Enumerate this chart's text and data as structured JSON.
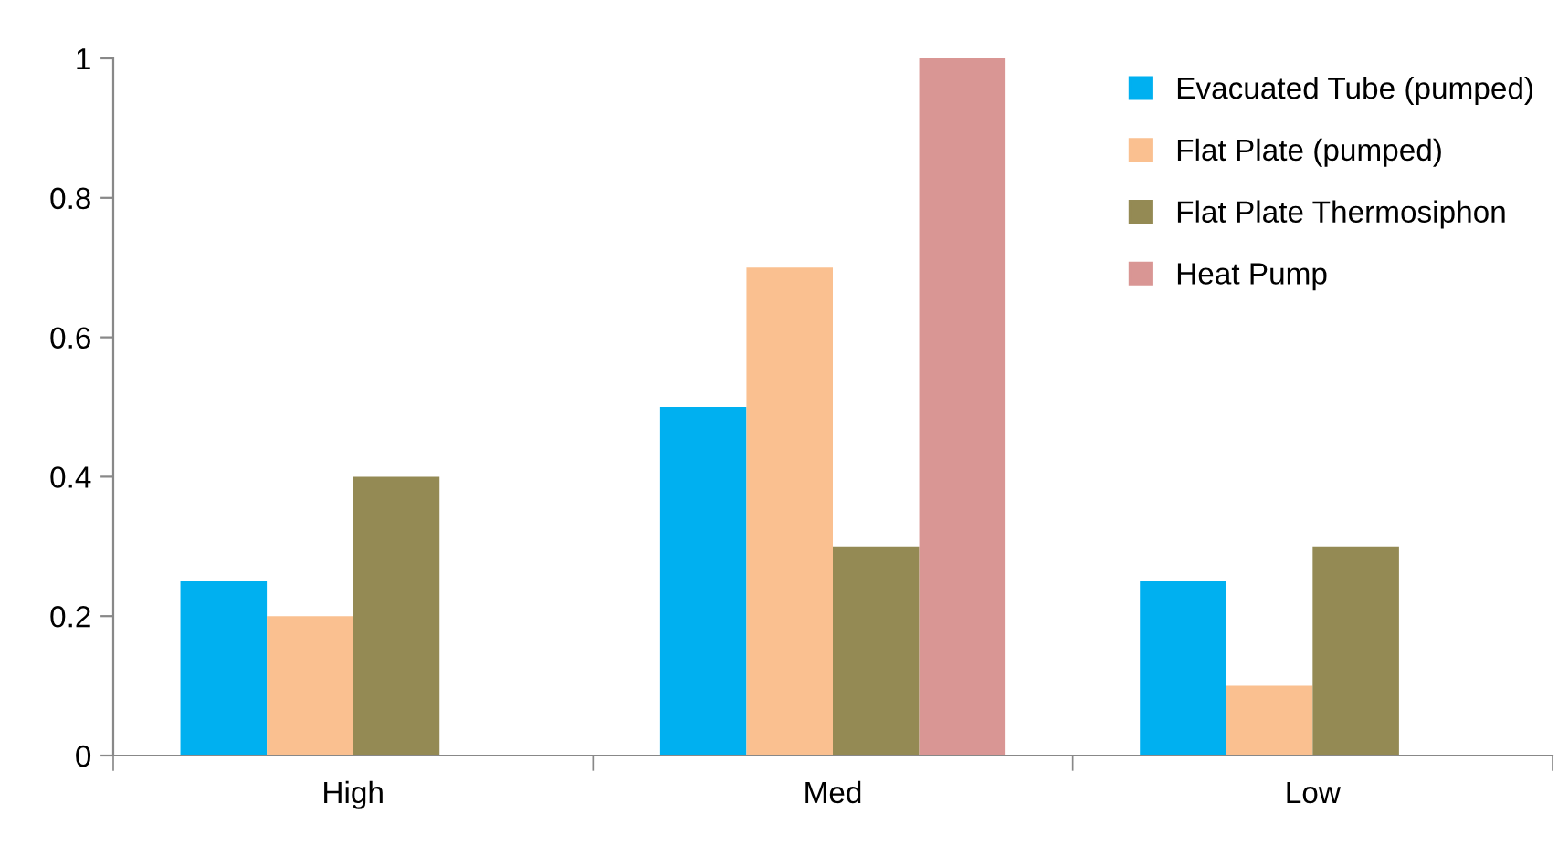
{
  "chart_data": {
    "type": "bar",
    "categories": [
      "High",
      "Med",
      "Low"
    ],
    "series": [
      {
        "name": "Evacuated Tube (pumped)",
        "color": "#00b0f0",
        "values": [
          0.25,
          0.5,
          0.25
        ]
      },
      {
        "name": "Flat Plate (pumped)",
        "color": "#fac090",
        "values": [
          0.2,
          0.7,
          0.1
        ]
      },
      {
        "name": "Flat Plate Thermosiphon",
        "color": "#948a54",
        "values": [
          0.4,
          0.3,
          0.3
        ]
      },
      {
        "name": "Heat Pump",
        "color": "#d99694",
        "values": [
          null,
          1.0,
          null
        ]
      }
    ],
    "ylim": [
      0,
      1
    ],
    "yticks": [
      0,
      0.2,
      0.4,
      0.6,
      0.8,
      1
    ],
    "grid": false,
    "legend": "top right"
  }
}
